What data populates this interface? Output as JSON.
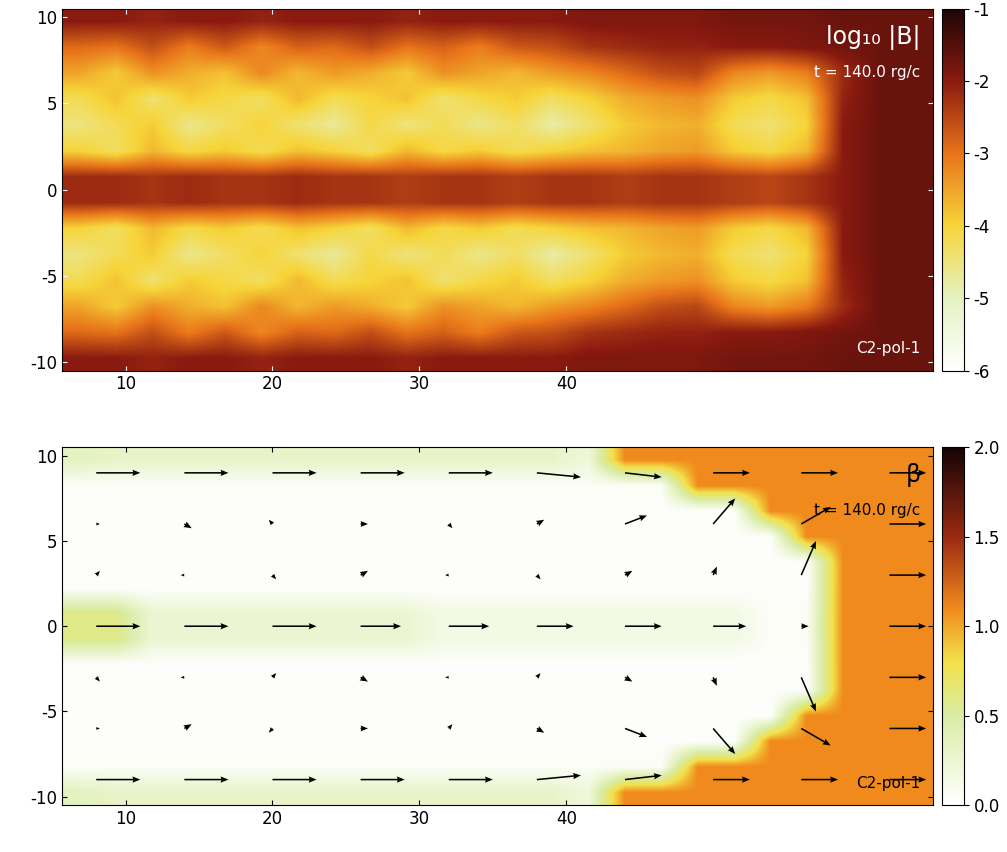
{
  "chart_data": [
    {
      "type": "heatmap",
      "annotations": [
        "log₁₀ |B|",
        "t = 140.0 rg/c",
        "C2-pol-1"
      ],
      "xlim": [
        5.7,
        65.0
      ],
      "xticks": [
        10,
        20,
        30,
        40
      ],
      "ylim": [
        -10.5,
        10.5
      ],
      "yticks": [
        -10,
        -5,
        0,
        5,
        10
      ],
      "color_range": [
        -6,
        -1
      ],
      "color_ticks": [
        -6,
        -5,
        -4,
        -3,
        -2,
        -1
      ],
      "cells": [
        [
          -2.0,
          -2.0,
          -2.1,
          -2.0,
          -2.0,
          -2.1,
          -2.0,
          -2.0,
          -2.0,
          -2.1,
          -2.0,
          -2.0,
          -2.0,
          -2.0,
          -1.9,
          -1.9,
          -1.9,
          -1.9,
          -1.8,
          -1.8,
          -1.8,
          -1.7,
          -1.7,
          -1.7
        ],
        [
          -2.9,
          -3.0,
          -2.6,
          -3.1,
          -2.7,
          -3.2,
          -2.8,
          -2.9,
          -2.6,
          -3.0,
          -2.8,
          -3.1,
          -2.7,
          -2.6,
          -2.3,
          -2.2,
          -2.1,
          -2.1,
          -2.0,
          -2.0,
          -1.9,
          -1.8,
          -1.7,
          -1.7
        ],
        [
          -3.5,
          -3.9,
          -3.3,
          -3.6,
          -3.8,
          -3.2,
          -3.7,
          -3.4,
          -3.6,
          -3.9,
          -3.3,
          -3.5,
          -3.7,
          -3.4,
          -3.2,
          -2.9,
          -2.6,
          -2.5,
          -3.2,
          -3.4,
          -3.1,
          -2.2,
          -1.7,
          -1.7
        ],
        [
          -4.2,
          -3.8,
          -4.4,
          -3.9,
          -4.1,
          -4.3,
          -3.7,
          -4.2,
          -4.0,
          -3.8,
          -4.4,
          -4.1,
          -3.9,
          -4.3,
          -4.0,
          -3.6,
          -3.4,
          -3.3,
          -3.9,
          -4.1,
          -3.8,
          -2.1,
          -1.7,
          -1.7
        ],
        [
          -4.5,
          -4.2,
          -3.9,
          -4.6,
          -4.3,
          -4.0,
          -4.4,
          -4.7,
          -4.1,
          -4.5,
          -4.2,
          -4.6,
          -4.3,
          -4.8,
          -4.4,
          -3.9,
          -3.7,
          -3.6,
          -4.2,
          -4.4,
          -4.0,
          -2.0,
          -1.7,
          -1.7
        ],
        [
          -4.0,
          -4.3,
          -3.7,
          -4.1,
          -3.9,
          -4.2,
          -3.8,
          -4.0,
          -4.3,
          -3.7,
          -4.1,
          -3.9,
          -4.2,
          -4.0,
          -3.8,
          -3.7,
          -3.5,
          -3.4,
          -3.9,
          -4.1,
          -3.7,
          -2.0,
          -1.7,
          -1.7
        ],
        [
          -2.2,
          -2.2,
          -2.3,
          -2.2,
          -2.3,
          -2.3,
          -2.2,
          -2.3,
          -2.3,
          -2.4,
          -2.3,
          -2.3,
          -2.4,
          -2.3,
          -2.3,
          -2.4,
          -2.3,
          -2.3,
          -2.4,
          -2.5,
          -2.3,
          -2.0,
          -1.7,
          -1.7
        ],
        [
          -2.2,
          -2.2,
          -2.3,
          -2.2,
          -2.3,
          -2.3,
          -2.2,
          -2.3,
          -2.3,
          -2.4,
          -2.3,
          -2.3,
          -2.4,
          -2.3,
          -2.3,
          -2.4,
          -2.3,
          -2.3,
          -2.4,
          -2.5,
          -2.3,
          -2.0,
          -1.7,
          -1.7
        ],
        [
          -4.0,
          -4.3,
          -3.7,
          -4.1,
          -3.9,
          -4.2,
          -3.8,
          -4.0,
          -4.3,
          -3.7,
          -4.1,
          -3.9,
          -4.2,
          -4.0,
          -3.8,
          -3.7,
          -3.5,
          -3.4,
          -3.9,
          -4.1,
          -3.7,
          -2.0,
          -1.7,
          -1.7
        ],
        [
          -4.5,
          -4.2,
          -3.9,
          -4.6,
          -4.3,
          -4.0,
          -4.4,
          -4.7,
          -4.1,
          -4.5,
          -4.2,
          -4.6,
          -4.3,
          -4.8,
          -4.4,
          -3.9,
          -3.7,
          -3.6,
          -4.2,
          -4.4,
          -4.0,
          -2.0,
          -1.7,
          -1.7
        ],
        [
          -4.2,
          -3.8,
          -4.4,
          -3.9,
          -4.1,
          -4.3,
          -3.7,
          -4.2,
          -4.0,
          -3.8,
          -4.4,
          -4.1,
          -3.9,
          -4.3,
          -4.0,
          -3.6,
          -3.4,
          -3.3,
          -3.9,
          -4.1,
          -3.8,
          -2.1,
          -1.7,
          -1.7
        ],
        [
          -3.5,
          -3.9,
          -3.3,
          -3.6,
          -3.8,
          -3.2,
          -3.7,
          -3.4,
          -3.6,
          -3.9,
          -3.3,
          -3.5,
          -3.7,
          -3.4,
          -3.2,
          -2.9,
          -2.6,
          -2.5,
          -3.2,
          -3.4,
          -3.1,
          -2.2,
          -1.7,
          -1.7
        ],
        [
          -2.9,
          -3.0,
          -2.6,
          -3.1,
          -2.7,
          -3.2,
          -2.8,
          -2.9,
          -2.6,
          -3.0,
          -2.8,
          -3.1,
          -2.7,
          -2.6,
          -2.3,
          -2.2,
          -2.1,
          -2.1,
          -2.0,
          -2.0,
          -1.9,
          -1.8,
          -1.7,
          -1.7
        ],
        [
          -2.0,
          -2.0,
          -2.1,
          -2.0,
          -2.0,
          -2.1,
          -2.0,
          -2.0,
          -2.0,
          -2.1,
          -2.0,
          -2.0,
          -2.0,
          -2.0,
          -1.9,
          -1.9,
          -1.9,
          -1.9,
          -1.8,
          -1.8,
          -1.8,
          -1.7,
          -1.7,
          -1.7
        ]
      ]
    },
    {
      "type": "heatmap",
      "annotations": [
        "β",
        "t = 140.0 rg/c",
        "C2-pol-1"
      ],
      "xlim": [
        5.7,
        65.0
      ],
      "xticks": [
        10,
        20,
        30,
        40
      ],
      "ylim": [
        -10.5,
        10.5
      ],
      "yticks": [
        -10,
        -5,
        0,
        5,
        10
      ],
      "color_range": [
        0,
        2
      ],
      "color_ticks": [
        {
          "value": 0,
          "label": "0.0"
        },
        {
          "value": 0.5,
          "label": "0.5"
        },
        {
          "value": 1,
          "label": "1.0"
        },
        {
          "value": 1.5,
          "label": "1.5"
        },
        {
          "value": 2,
          "label": "2.0"
        }
      ],
      "cells": [
        [
          0.35,
          0.3,
          0.3,
          0.3,
          0.3,
          0.3,
          0.3,
          0.3,
          0.3,
          0.3,
          0.3,
          0.3,
          0.3,
          0.3,
          0.2,
          1.1,
          1.1,
          1.1,
          1.1,
          1.1,
          1.1,
          1.1,
          1.1,
          1.1
        ],
        [
          0.05,
          0.05,
          0.05,
          0.05,
          0.05,
          0.05,
          0.05,
          0.05,
          0.05,
          0.05,
          0.05,
          0.05,
          0.05,
          0.05,
          0.05,
          0.05,
          0.05,
          1.1,
          1.1,
          1.1,
          1.1,
          1.1,
          1.1,
          1.1
        ],
        [
          0.02,
          0.02,
          0.02,
          0.02,
          0.02,
          0.02,
          0.02,
          0.02,
          0.02,
          0.02,
          0.02,
          0.02,
          0.02,
          0.02,
          0.02,
          0.02,
          0.02,
          0.02,
          0.02,
          1.1,
          1.1,
          1.1,
          1.1,
          1.1
        ],
        [
          0.02,
          0.02,
          0.02,
          0.02,
          0.02,
          0.02,
          0.02,
          0.02,
          0.02,
          0.02,
          0.02,
          0.02,
          0.02,
          0.02,
          0.02,
          0.02,
          0.02,
          0.02,
          0.02,
          0.02,
          1.1,
          1.1,
          1.1,
          1.1
        ],
        [
          0.02,
          0.02,
          0.02,
          0.02,
          0.02,
          0.02,
          0.02,
          0.02,
          0.02,
          0.02,
          0.02,
          0.02,
          0.02,
          0.02,
          0.02,
          0.02,
          0.02,
          0.02,
          0.02,
          0.02,
          0.02,
          1.1,
          1.1,
          1.1
        ],
        [
          0.02,
          0.02,
          0.02,
          0.02,
          0.02,
          0.02,
          0.02,
          0.02,
          0.02,
          0.02,
          0.02,
          0.02,
          0.02,
          0.02,
          0.02,
          0.02,
          0.02,
          0.02,
          0.02,
          0.02,
          0.02,
          1.1,
          1.1,
          1.1
        ],
        [
          0.6,
          0.6,
          0.25,
          0.25,
          0.25,
          0.25,
          0.25,
          0.25,
          0.25,
          0.25,
          0.15,
          0.15,
          0.15,
          0.15,
          0.15,
          0.15,
          0.15,
          0.15,
          0.15,
          0.05,
          0.05,
          1.1,
          1.1,
          1.1
        ],
        [
          0.6,
          0.6,
          0.25,
          0.25,
          0.25,
          0.25,
          0.25,
          0.25,
          0.25,
          0.25,
          0.15,
          0.15,
          0.15,
          0.15,
          0.15,
          0.15,
          0.15,
          0.15,
          0.15,
          0.05,
          0.05,
          1.1,
          1.1,
          1.1
        ],
        [
          0.02,
          0.02,
          0.02,
          0.02,
          0.02,
          0.02,
          0.02,
          0.02,
          0.02,
          0.02,
          0.02,
          0.02,
          0.02,
          0.02,
          0.02,
          0.02,
          0.02,
          0.02,
          0.02,
          0.02,
          0.02,
          1.1,
          1.1,
          1.1
        ],
        [
          0.02,
          0.02,
          0.02,
          0.02,
          0.02,
          0.02,
          0.02,
          0.02,
          0.02,
          0.02,
          0.02,
          0.02,
          0.02,
          0.02,
          0.02,
          0.02,
          0.02,
          0.02,
          0.02,
          0.02,
          0.02,
          1.1,
          1.1,
          1.1
        ],
        [
          0.02,
          0.02,
          0.02,
          0.02,
          0.02,
          0.02,
          0.02,
          0.02,
          0.02,
          0.02,
          0.02,
          0.02,
          0.02,
          0.02,
          0.02,
          0.02,
          0.02,
          0.02,
          0.02,
          0.02,
          1.1,
          1.1,
          1.1,
          1.1
        ],
        [
          0.02,
          0.02,
          0.02,
          0.02,
          0.02,
          0.02,
          0.02,
          0.02,
          0.02,
          0.02,
          0.02,
          0.02,
          0.02,
          0.02,
          0.02,
          0.02,
          0.02,
          0.02,
          0.02,
          1.1,
          1.1,
          1.1,
          1.1,
          1.1
        ],
        [
          0.05,
          0.05,
          0.05,
          0.05,
          0.05,
          0.05,
          0.05,
          0.05,
          0.05,
          0.05,
          0.05,
          0.05,
          0.05,
          0.05,
          0.05,
          0.05,
          0.05,
          1.1,
          1.1,
          1.1,
          1.1,
          1.1,
          1.1,
          1.1
        ],
        [
          0.35,
          0.3,
          0.3,
          0.3,
          0.3,
          0.3,
          0.3,
          0.3,
          0.3,
          0.3,
          0.3,
          0.3,
          0.3,
          0.3,
          0.2,
          1.1,
          1.1,
          1.1,
          1.1,
          1.1,
          1.1,
          1.1,
          1.1,
          1.1
        ]
      ],
      "vectors": {
        "x": [
          8,
          14,
          20,
          26,
          32,
          38,
          44,
          50,
          56,
          62
        ],
        "y": [
          -9,
          -6,
          -3,
          0,
          3,
          6,
          9
        ],
        "u": [
          [
            0.6,
            0.6,
            0.6,
            0.6,
            0.6,
            0.6,
            0.5,
            0.5,
            0.5,
            0.5
          ],
          [
            0.05,
            0.1,
            -0.05,
            0.1,
            0.05,
            0.1,
            0.3,
            0.3,
            0.4,
            0.5
          ],
          [
            0.05,
            -0.05,
            0.05,
            0.1,
            -0.05,
            0.05,
            0.1,
            0.05,
            0.2,
            0.5
          ],
          [
            0.6,
            0.6,
            0.6,
            0.55,
            0.55,
            0.5,
            0.5,
            0.45,
            0.1,
            0.5
          ],
          [
            0.05,
            -0.05,
            0.05,
            0.1,
            -0.05,
            0.05,
            0.1,
            0.05,
            0.2,
            0.5
          ],
          [
            0.05,
            0.1,
            -0.05,
            0.1,
            0.05,
            0.1,
            0.3,
            0.3,
            0.4,
            0.5
          ],
          [
            0.6,
            0.6,
            0.6,
            0.6,
            0.6,
            0.6,
            0.5,
            0.5,
            0.5,
            0.5
          ]
        ],
        "v": [
          [
            0,
            0,
            0,
            0,
            0,
            0.05,
            0.05,
            0,
            0,
            0
          ],
          [
            0,
            0.05,
            -0.05,
            0,
            0.05,
            -0.05,
            -0.1,
            -0.3,
            -0.2,
            0
          ],
          [
            -0.05,
            0,
            0.05,
            -0.05,
            0,
            0.05,
            -0.05,
            -0.1,
            -0.4,
            0
          ],
          [
            0,
            0,
            0,
            0,
            0,
            0,
            0,
            0,
            0,
            0
          ],
          [
            0.05,
            0,
            -0.05,
            0.05,
            0,
            -0.05,
            0.05,
            0.1,
            0.4,
            0
          ],
          [
            0,
            -0.05,
            0.05,
            0,
            -0.05,
            0.05,
            0.1,
            0.3,
            0.2,
            0
          ],
          [
            0,
            0,
            0,
            0,
            0,
            -0.05,
            -0.05,
            0,
            0,
            0
          ]
        ]
      }
    }
  ]
}
